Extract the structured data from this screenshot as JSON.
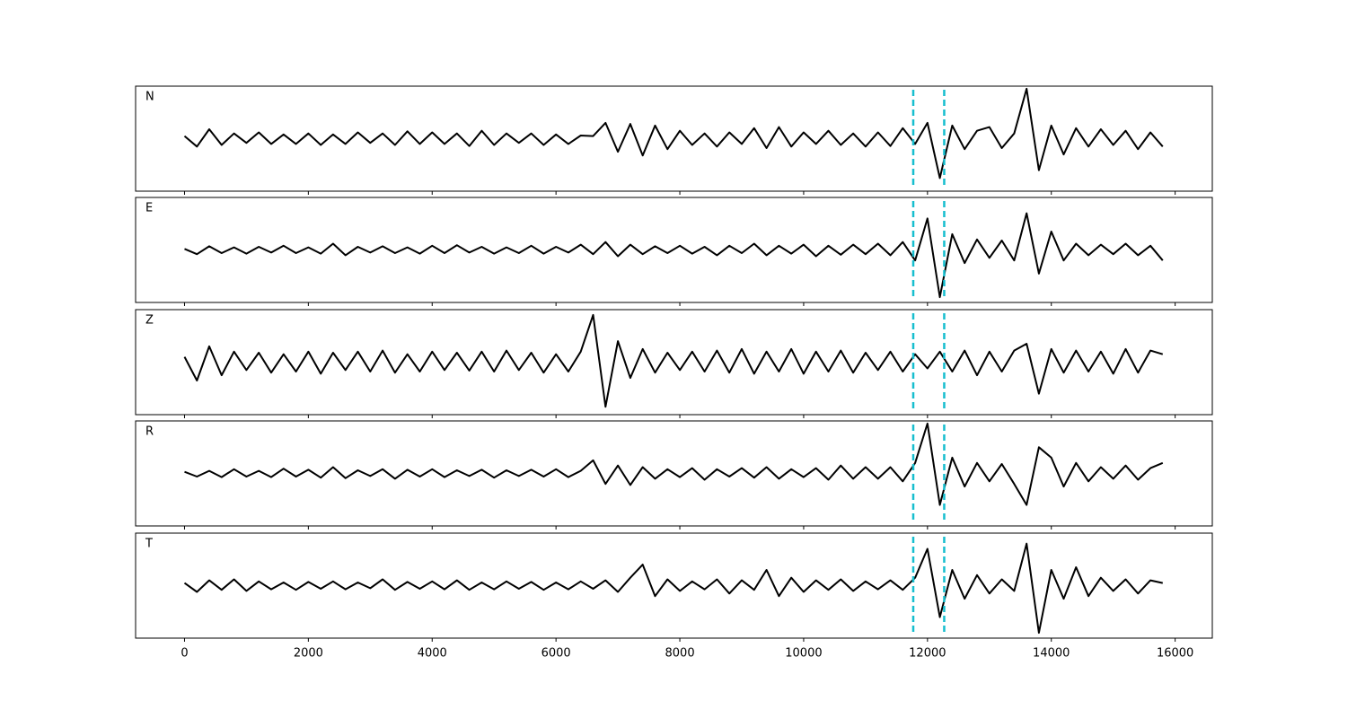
{
  "chart_data": {
    "type": "line",
    "color": "#000000",
    "marker_color": "#17becf",
    "xlim": [
      -790,
      16600
    ],
    "ylim": [
      -1,
      1
    ],
    "xticks": [
      0,
      2000,
      4000,
      6000,
      8000,
      10000,
      12000,
      14000,
      16000
    ],
    "markers": [
      11770,
      12270
    ],
    "x": [
      0,
      200,
      400,
      600,
      800,
      1000,
      1200,
      1400,
      1600,
      1800,
      2000,
      2200,
      2400,
      2600,
      2800,
      3000,
      3200,
      3400,
      3600,
      3800,
      4000,
      4200,
      4400,
      4600,
      4800,
      5000,
      5200,
      5400,
      5600,
      5800,
      6000,
      6200,
      6400,
      6600,
      6800,
      7000,
      7200,
      7400,
      7600,
      7800,
      8000,
      8200,
      8400,
      8600,
      8800,
      9000,
      9200,
      9400,
      9600,
      9800,
      10000,
      10200,
      10400,
      10600,
      10800,
      11000,
      11200,
      11400,
      11600,
      11800,
      12000,
      12200,
      12400,
      12600,
      12800,
      13000,
      13200,
      13400,
      13600,
      13800,
      14000,
      14200,
      14400,
      14600,
      14800,
      15000,
      15200,
      15400,
      15600,
      15800
    ],
    "panels": [
      {
        "label": "N",
        "values": [
          0.05,
          -0.15,
          0.18,
          -0.12,
          0.1,
          -0.08,
          0.12,
          -0.1,
          0.08,
          -0.1,
          0.1,
          -0.12,
          0.08,
          -0.1,
          0.12,
          -0.08,
          0.1,
          -0.12,
          0.14,
          -0.1,
          0.12,
          -0.1,
          0.1,
          -0.14,
          0.15,
          -0.12,
          0.1,
          -0.08,
          0.1,
          -0.12,
          0.08,
          -0.1,
          0.06,
          0.05,
          0.3,
          -0.25,
          0.28,
          -0.32,
          0.25,
          -0.2,
          0.15,
          -0.12,
          0.1,
          -0.15,
          0.12,
          -0.1,
          0.2,
          -0.18,
          0.22,
          -0.15,
          0.12,
          -0.1,
          0.15,
          -0.12,
          0.1,
          -0.15,
          0.12,
          -0.14,
          0.2,
          -0.1,
          0.3,
          -0.75,
          0.25,
          -0.2,
          0.15,
          0.22,
          -0.18,
          0.1,
          0.95,
          -0.6,
          0.25,
          -0.3,
          0.2,
          -0.15,
          0.18,
          -0.12,
          0.15,
          -0.2,
          0.12,
          -0.15
        ]
      },
      {
        "label": "E",
        "values": [
          0.02,
          -0.08,
          0.07,
          -0.06,
          0.05,
          -0.07,
          0.06,
          -0.05,
          0.08,
          -0.06,
          0.05,
          -0.07,
          0.12,
          -0.1,
          0.06,
          -0.05,
          0.07,
          -0.06,
          0.05,
          -0.07,
          0.08,
          -0.06,
          0.09,
          -0.05,
          0.06,
          -0.07,
          0.05,
          -0.06,
          0.08,
          -0.07,
          0.06,
          -0.05,
          0.1,
          -0.08,
          0.15,
          -0.12,
          0.1,
          -0.08,
          0.07,
          -0.06,
          0.08,
          -0.07,
          0.06,
          -0.1,
          0.08,
          -0.06,
          0.12,
          -0.1,
          0.08,
          -0.07,
          0.1,
          -0.12,
          0.08,
          -0.09,
          0.1,
          -0.08,
          0.12,
          -0.1,
          0.15,
          -0.2,
          0.6,
          -0.9,
          0.3,
          -0.25,
          0.2,
          -0.15,
          0.18,
          -0.2,
          0.7,
          -0.45,
          0.35,
          -0.2,
          0.12,
          -0.1,
          0.1,
          -0.08,
          0.12,
          -0.1,
          0.08,
          -0.2
        ]
      },
      {
        "label": "Z",
        "values": [
          0.1,
          -0.35,
          0.3,
          -0.25,
          0.2,
          -0.15,
          0.18,
          -0.2,
          0.15,
          -0.18,
          0.2,
          -0.22,
          0.18,
          -0.15,
          0.2,
          -0.18,
          0.22,
          -0.2,
          0.15,
          -0.18,
          0.2,
          -0.15,
          0.18,
          -0.16,
          0.2,
          -0.18,
          0.22,
          -0.15,
          0.18,
          -0.2,
          0.15,
          -0.18,
          0.2,
          0.9,
          -0.85,
          0.4,
          -0.3,
          0.25,
          -0.2,
          0.18,
          -0.15,
          0.2,
          -0.18,
          0.22,
          -0.2,
          0.25,
          -0.22,
          0.2,
          -0.18,
          0.25,
          -0.22,
          0.2,
          -0.18,
          0.22,
          -0.2,
          0.18,
          -0.15,
          0.2,
          -0.18,
          0.15,
          -0.12,
          0.2,
          -0.18,
          0.22,
          -0.25,
          0.2,
          -0.18,
          0.22,
          0.35,
          -0.6,
          0.25,
          -0.2,
          0.22,
          -0.18,
          0.2,
          -0.22,
          0.25,
          -0.2,
          0.22,
          0.15
        ]
      },
      {
        "label": "R",
        "values": [
          0.03,
          -0.06,
          0.05,
          -0.07,
          0.08,
          -0.06,
          0.05,
          -0.07,
          0.09,
          -0.06,
          0.07,
          -0.08,
          0.12,
          -0.09,
          0.06,
          -0.05,
          0.08,
          -0.1,
          0.07,
          -0.06,
          0.08,
          -0.07,
          0.06,
          -0.05,
          0.07,
          -0.08,
          0.06,
          -0.05,
          0.07,
          -0.06,
          0.08,
          -0.07,
          0.05,
          0.25,
          -0.2,
          0.15,
          -0.22,
          0.12,
          -0.1,
          0.08,
          -0.07,
          0.1,
          -0.12,
          0.08,
          -0.06,
          0.1,
          -0.08,
          0.12,
          -0.1,
          0.08,
          -0.07,
          0.1,
          -0.12,
          0.15,
          -0.1,
          0.12,
          -0.1,
          0.12,
          -0.15,
          0.2,
          0.95,
          -0.6,
          0.3,
          -0.25,
          0.2,
          -0.15,
          0.18,
          -0.2,
          -0.6,
          0.5,
          0.3,
          -0.25,
          0.2,
          -0.15,
          0.12,
          -0.1,
          0.15,
          -0.12,
          0.1,
          0.2
        ]
      },
      {
        "label": "T",
        "values": [
          0.05,
          -0.12,
          0.1,
          -0.08,
          0.12,
          -0.1,
          0.08,
          -0.07,
          0.06,
          -0.08,
          0.07,
          -0.06,
          0.08,
          -0.07,
          0.06,
          -0.05,
          0.12,
          -0.08,
          0.07,
          -0.06,
          0.08,
          -0.07,
          0.1,
          -0.08,
          0.06,
          -0.07,
          0.08,
          -0.06,
          0.07,
          -0.08,
          0.06,
          -0.07,
          0.08,
          -0.06,
          0.1,
          -0.12,
          0.15,
          0.4,
          -0.2,
          0.12,
          -0.1,
          0.08,
          -0.07,
          0.12,
          -0.15,
          0.1,
          -0.08,
          0.3,
          -0.2,
          0.15,
          -0.12,
          0.1,
          -0.08,
          0.12,
          -0.1,
          0.08,
          -0.07,
          0.1,
          -0.08,
          0.15,
          0.7,
          -0.6,
          0.3,
          -0.25,
          0.2,
          -0.15,
          0.12,
          -0.1,
          0.8,
          -0.9,
          0.3,
          -0.25,
          0.35,
          -0.2,
          0.15,
          -0.1,
          0.12,
          -0.15,
          0.1,
          0.05
        ]
      }
    ]
  }
}
